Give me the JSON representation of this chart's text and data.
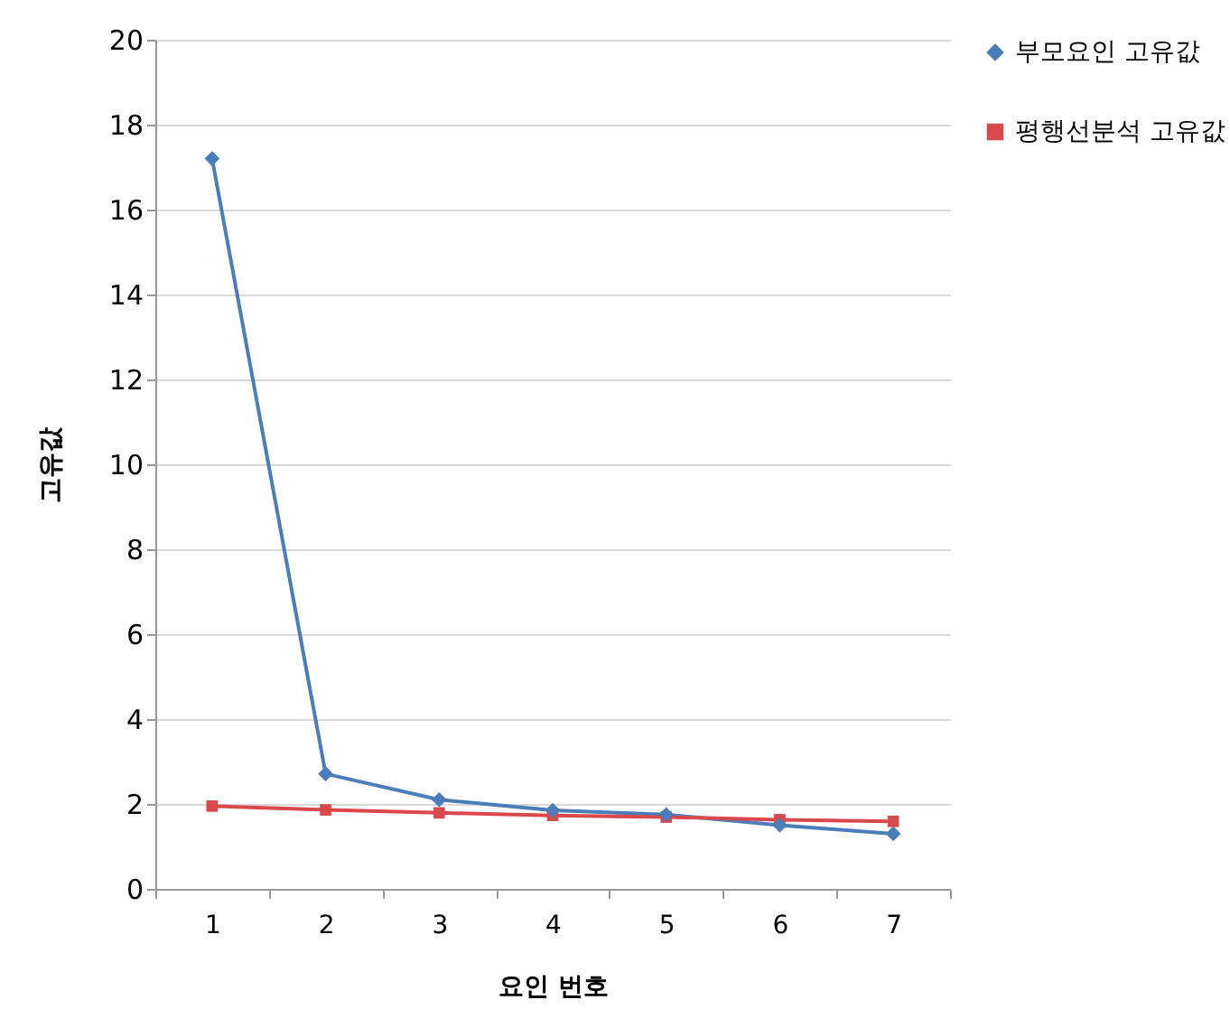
{
  "chart_data": {
    "type": "line",
    "xlabel": "요인 번호",
    "ylabel": "고유값",
    "categories": [
      "1",
      "2",
      "3",
      "4",
      "5",
      "6",
      "7"
    ],
    "ylim": [
      0,
      20
    ],
    "yticks": [
      0,
      2,
      4,
      6,
      8,
      10,
      12,
      14,
      16,
      18,
      20
    ],
    "grid": "y",
    "legend": "right",
    "line_style": "solid",
    "series": [
      {
        "name": "부모요인 고유값",
        "color": "#4a7ebb",
        "marker": "diamond",
        "values": [
          17.2,
          2.71,
          2.1,
          1.85,
          1.75,
          1.5,
          1.3
        ]
      },
      {
        "name": "평행선분석 고유값",
        "color": "#d9484a",
        "marker": "square",
        "values": [
          1.95,
          1.86,
          1.79,
          1.73,
          1.69,
          1.63,
          1.59
        ]
      }
    ]
  }
}
